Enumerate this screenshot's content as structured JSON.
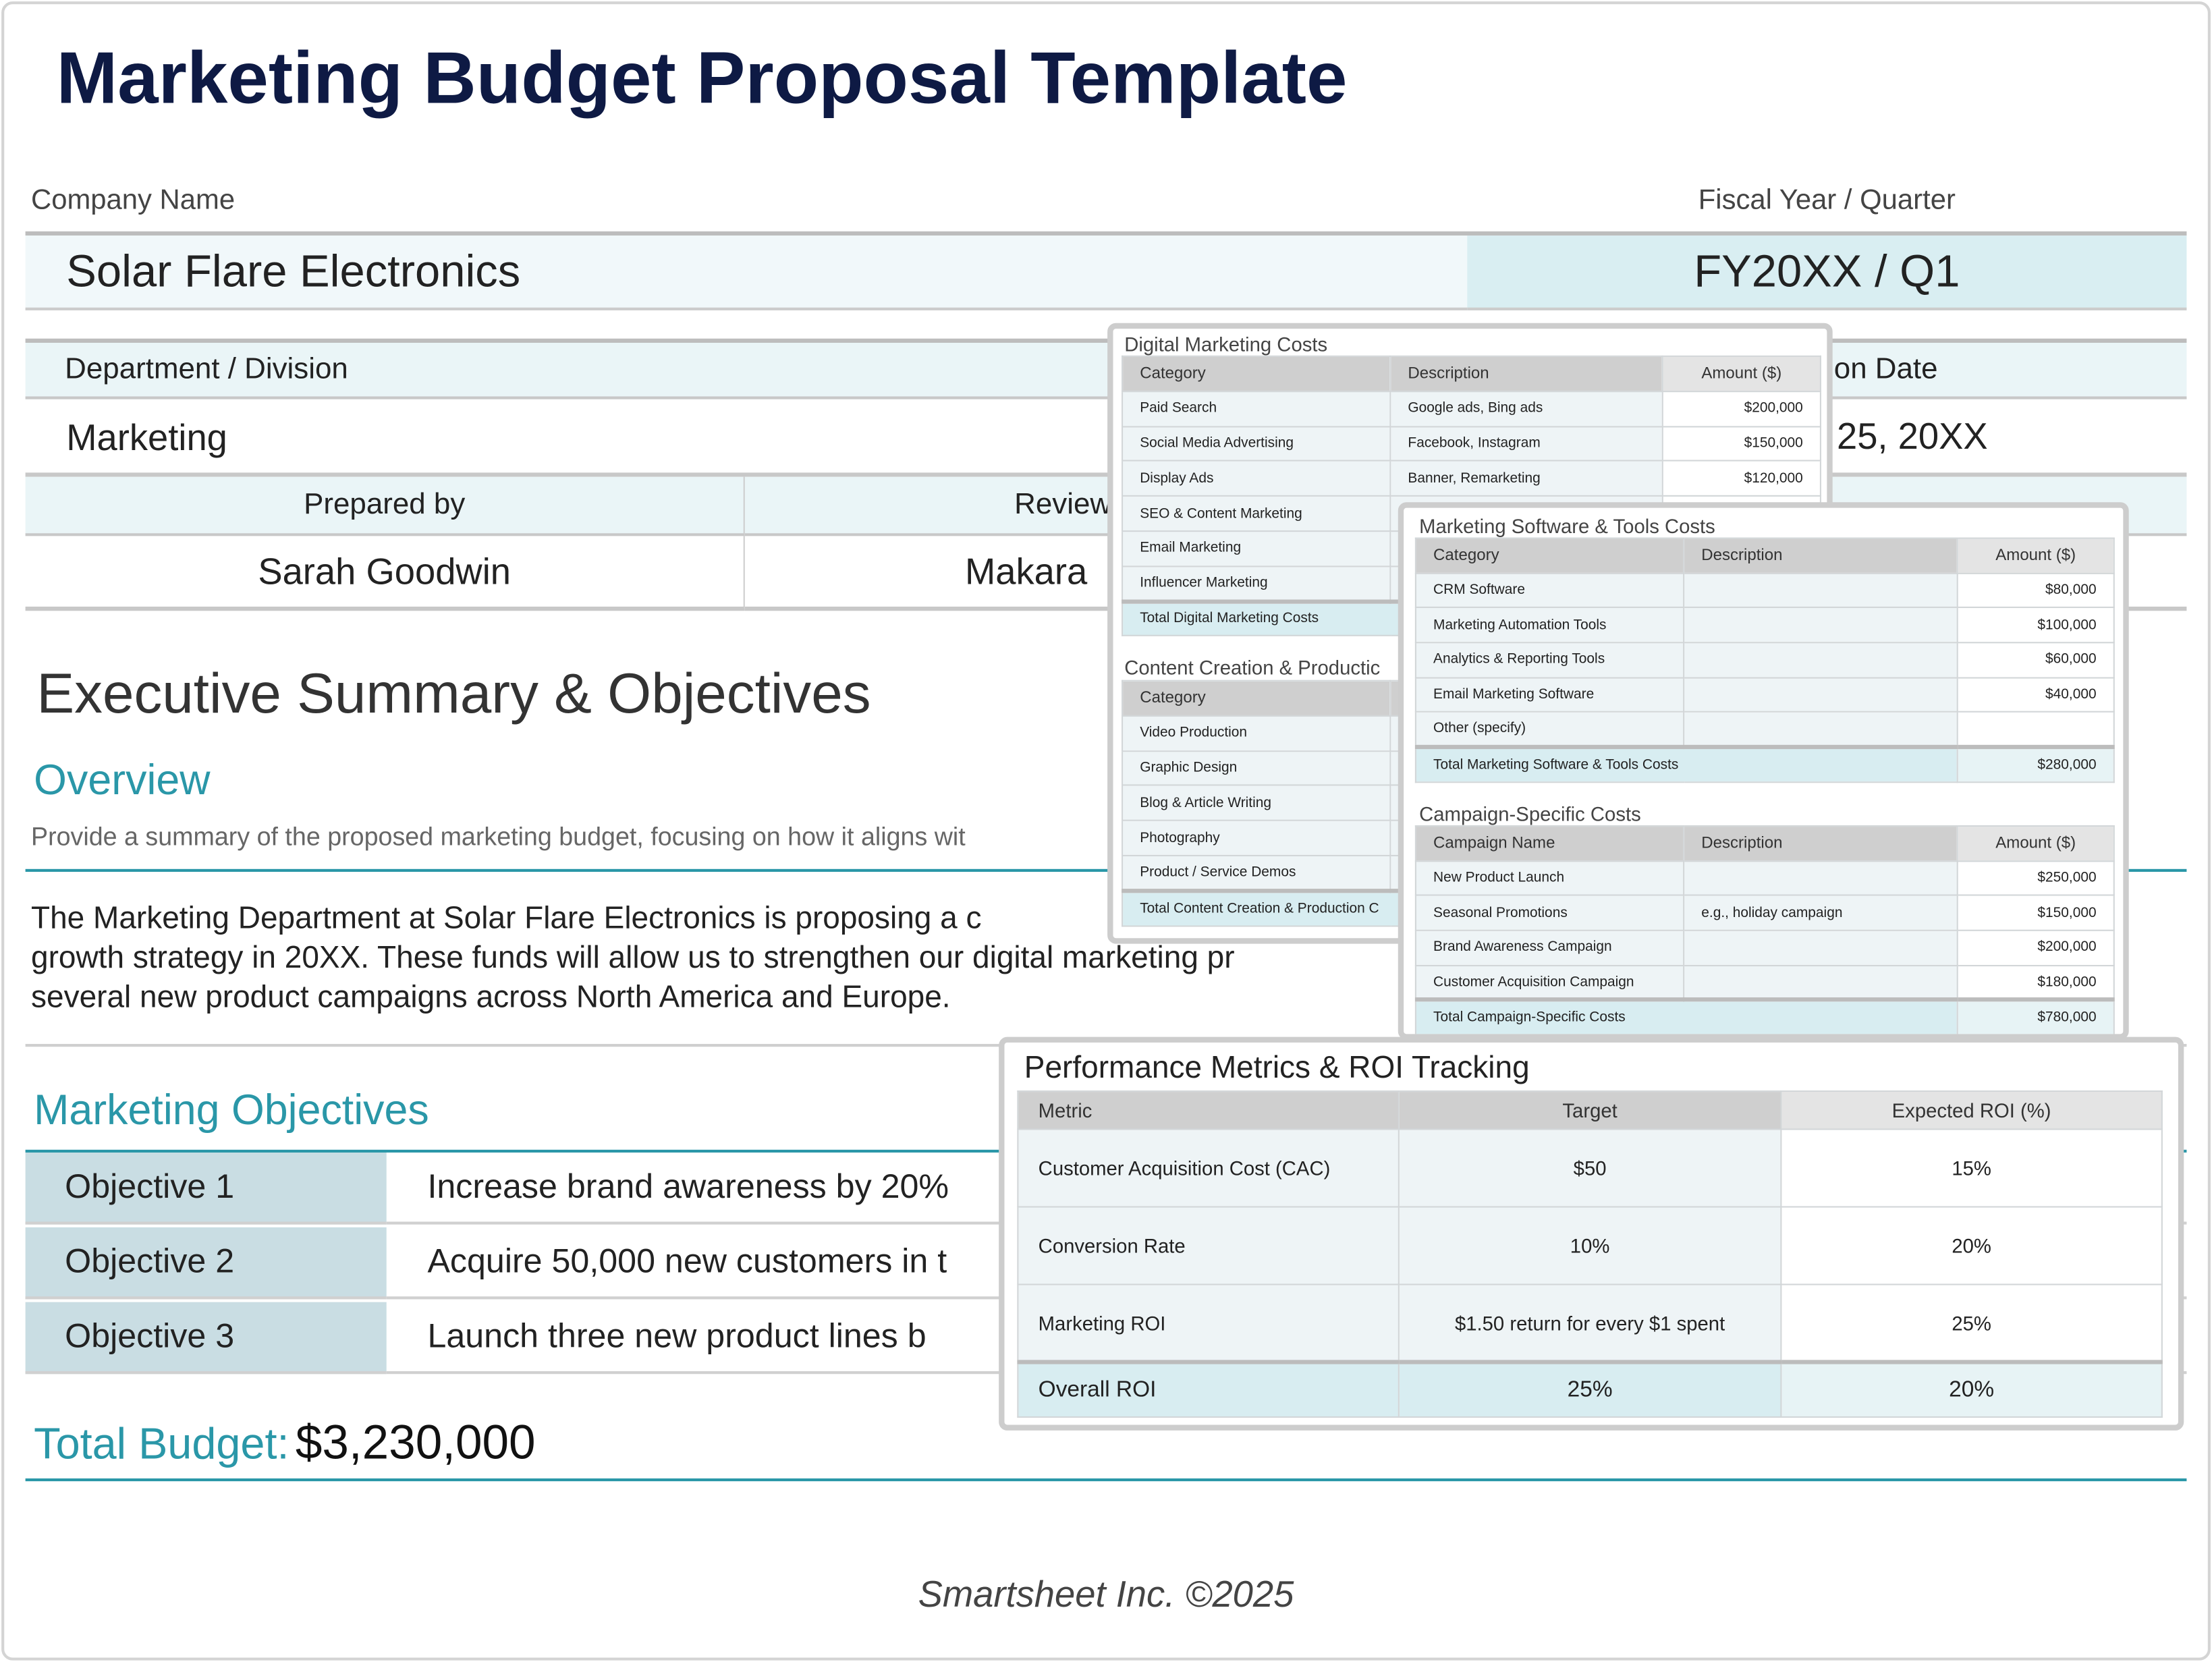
{
  "title": "Marketing Budget Proposal Template",
  "company": {
    "label": "Company Name",
    "value": "Solar Flare Electronics"
  },
  "fiscal": {
    "label": "Fiscal Year / Quarter",
    "value": "FY20XX / Q1"
  },
  "department": {
    "label": "Department / Division",
    "value": "Marketing"
  },
  "date": {
    "label_fragment": "on Date",
    "value_fragment": "25, 20XX"
  },
  "prepared_by": {
    "label": "Prepared by",
    "value": "Sarah Goodwin"
  },
  "reviewed_by": {
    "label_fragment": "Review",
    "value_fragment": "Makara"
  },
  "executive": {
    "heading": "Executive Summary & Objectives",
    "overview_heading": "Overview",
    "overview_prompt": "Provide a summary of the proposed marketing budget, focusing on how it aligns wit",
    "paragraph_lines": [
      "The Marketing Department at Solar Flare Electronics is proposing a c",
      "growth strategy in 20XX. These funds will allow us to strengthen our digital marketing pr",
      "several new product campaigns across North America and Europe."
    ]
  },
  "objectives": {
    "heading": "Marketing Objectives",
    "items": [
      {
        "label": "Objective 1",
        "text": "Increase brand awareness by 20%"
      },
      {
        "label": "Objective 2",
        "text": "Acquire 50,000 new customers in t"
      },
      {
        "label": "Objective 3",
        "text": "Launch three new product lines b"
      }
    ]
  },
  "total_budget": {
    "label": "Total Budget:",
    "value": "$3,230,000"
  },
  "footer": "Smartsheet Inc. ©2025",
  "digital": {
    "title": "Digital Marketing Costs",
    "headers": [
      "Category",
      "Description",
      "Amount ($)"
    ],
    "rows": [
      [
        "Paid Search",
        "Google ads, Bing ads",
        "$200,000"
      ],
      [
        "Social Media Advertising",
        "Facebook, Instagram",
        "$150,000"
      ],
      [
        "Display Ads",
        "Banner, Remarketing",
        "$120,000"
      ],
      [
        "SEO & Content Marketing",
        "",
        ""
      ],
      [
        "Email Marketing",
        "",
        ""
      ],
      [
        "Influencer Marketing",
        "",
        ""
      ]
    ],
    "total": [
      "Total Digital Marketing Costs",
      ""
    ]
  },
  "content": {
    "title": "Content Creation & Productic",
    "headers": [
      "Category",
      "",
      ""
    ],
    "rows": [
      [
        "Video Production",
        "",
        ""
      ],
      [
        "Graphic Design",
        "",
        ""
      ],
      [
        "Blog & Article Writing",
        "",
        ""
      ],
      [
        "Photography",
        "",
        ""
      ],
      [
        "Product / Service Demos",
        "",
        ""
      ]
    ],
    "total": [
      "Total Content Creation & Production C",
      ""
    ]
  },
  "software": {
    "title": "Marketing Software & Tools Costs",
    "headers": [
      "Category",
      "Description",
      "Amount ($)"
    ],
    "rows": [
      [
        "CRM Software",
        "",
        "$80,000"
      ],
      [
        "Marketing Automation Tools",
        "",
        "$100,000"
      ],
      [
        "Analytics & Reporting Tools",
        "",
        "$60,000"
      ],
      [
        "Email Marketing Software",
        "",
        "$40,000"
      ],
      [
        "Other (specify)",
        "",
        ""
      ]
    ],
    "total": [
      "Total Marketing Software & Tools Costs",
      "$280,000"
    ]
  },
  "campaign": {
    "title": "Campaign-Specific Costs",
    "headers": [
      "Campaign Name",
      "Description",
      "Amount ($)"
    ],
    "rows": [
      [
        "New Product Launch",
        "",
        "$250,000"
      ],
      [
        "Seasonal Promotions",
        "e.g., holiday campaign",
        "$150,000"
      ],
      [
        "Brand Awareness Campaign",
        "",
        "$200,000"
      ],
      [
        "Customer Acquisition Campaign",
        "",
        "$180,000"
      ]
    ],
    "total": [
      "Total Campaign-Specific Costs",
      "$780,000"
    ]
  },
  "performance": {
    "title": "Performance Metrics & ROI Tracking",
    "headers": [
      "Metric",
      "Target",
      "Expected ROI (%)"
    ],
    "rows": [
      [
        "Customer Acquisition Cost (CAC)",
        "$50",
        "15%"
      ],
      [
        "Conversion Rate",
        "10%",
        "20%"
      ],
      [
        "Marketing ROI",
        "$1.50 return for every $1 spent",
        "25%"
      ]
    ],
    "total": [
      "Overall ROI",
      "25%",
      "20%"
    ]
  },
  "colors": {
    "title": "#0e1a44",
    "accent": "#2a97a8",
    "light_fill": "#eef6f8",
    "highlight_fill": "#d8edf1",
    "objective_label_fill": "#c9dde3"
  }
}
